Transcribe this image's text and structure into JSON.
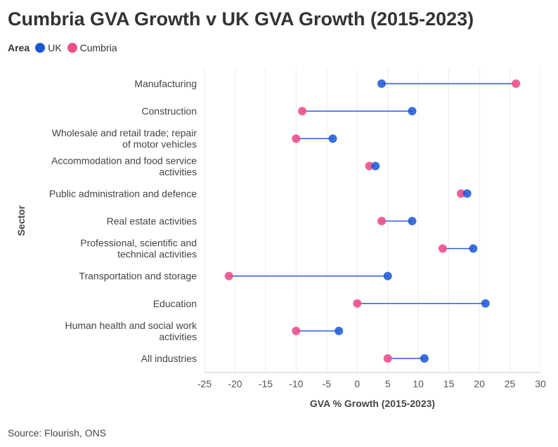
{
  "title": "Cumbria GVA Growth v UK GVA Growth (2015-2023)",
  "source": "Source: Flourish, ONS",
  "chart_data": {
    "type": "scatter",
    "subtype": "dumbbell",
    "title": "Cumbria GVA Growth v UK GVA Growth (2015-2023)",
    "xlabel": "GVA % Growth (2015-2023)",
    "ylabel": "Sector",
    "xlim": [
      -25,
      30
    ],
    "xticks": [
      -25,
      -20,
      -15,
      -10,
      -5,
      0,
      5,
      10,
      15,
      20,
      25,
      30
    ],
    "legend_title": "Area",
    "legend_position": "top-left",
    "grid": true,
    "categories": [
      [
        "Manufacturing"
      ],
      [
        "Construction"
      ],
      [
        "Wholesale and retail trade; repair",
        "of motor vehicles"
      ],
      [
        "Accommodation and food service",
        "activities"
      ],
      [
        "Public administration and defence"
      ],
      [
        "Real estate activities"
      ],
      [
        "Professional, scientific and",
        "technical activities"
      ],
      [
        "Transportation and storage"
      ],
      [
        "Education"
      ],
      [
        "Human health and social work",
        "activities"
      ],
      [
        "All industries"
      ]
    ],
    "series": [
      {
        "name": "UK",
        "color": "#1a56d6",
        "values": [
          4,
          9,
          -4,
          3,
          18,
          9,
          19,
          5,
          21,
          -3,
          11
        ]
      },
      {
        "name": "Cumbria",
        "color": "#ee4f8b",
        "values": [
          26,
          -9,
          -10,
          2,
          17,
          4,
          14,
          -21,
          0,
          -10,
          5
        ]
      }
    ]
  }
}
